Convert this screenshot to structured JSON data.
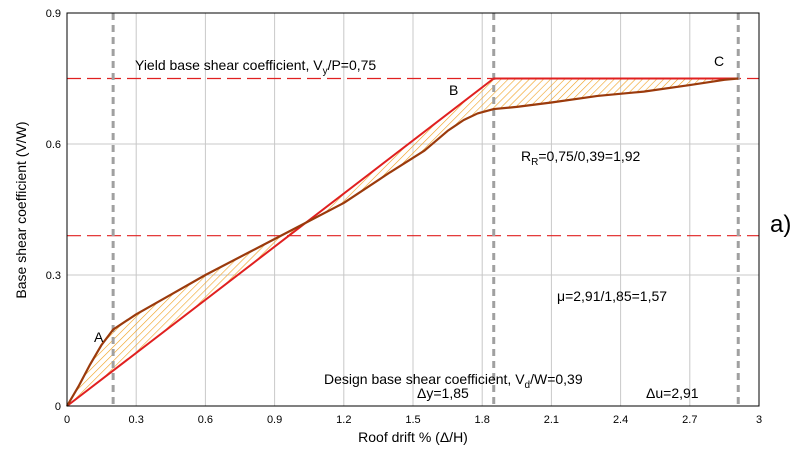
{
  "chart_data": {
    "type": "line",
    "xlabel": "Roof drift % (Δ/H)",
    "ylabel": "Base shear coefficient (V/W)",
    "xlim": [
      0,
      3
    ],
    "ylim": [
      0,
      0.9
    ],
    "x_ticks": [
      "0",
      "0.3",
      "0.6",
      "0.9",
      "1.2",
      "1.5",
      "1.8",
      "2.1",
      "2.4",
      "2.7",
      "3"
    ],
    "y_ticks": [
      "0",
      "0.3",
      "0.6",
      "0.9"
    ],
    "grid": true,
    "panel_label": "a)",
    "series": [
      {
        "kind": "capacity-curve",
        "color": "#9b3a0c",
        "x": [
          0,
          0.05,
          0.1,
          0.15,
          0.2,
          0.3,
          0.45,
          0.6,
          0.8,
          1.0,
          1.2,
          1.4,
          1.55,
          1.65,
          1.72,
          1.78,
          1.85,
          1.95,
          2.1,
          2.3,
          2.5,
          2.7,
          2.85,
          2.91
        ],
        "y": [
          0,
          0.045,
          0.095,
          0.14,
          0.175,
          0.21,
          0.255,
          0.3,
          0.355,
          0.41,
          0.465,
          0.535,
          0.585,
          0.63,
          0.655,
          0.67,
          0.68,
          0.685,
          0.695,
          0.71,
          0.72,
          0.735,
          0.747,
          0.75
        ]
      },
      {
        "kind": "bilinear-idealization",
        "color": "#e02020",
        "x": [
          0,
          1.85,
          2.91
        ],
        "y": [
          0,
          0.75,
          0.75
        ]
      }
    ],
    "reference_lines": {
      "horizontal": [
        {
          "y": 0.75,
          "color": "#e02020",
          "label_main": "Yield base shear coefficient, V",
          "label_sub": "y",
          "label_tail": "/P=0,75"
        },
        {
          "y": 0.39,
          "color": "#e02020",
          "label_main": "Design base shear coefficient, V",
          "label_sub": "d",
          "label_tail": "/W=0,39"
        }
      ],
      "vertical": [
        {
          "x": 0.2,
          "color": "#a0a0a0"
        },
        {
          "x": 1.85,
          "color": "#a0a0a0",
          "label": "Δy=1,85"
        },
        {
          "x": 2.91,
          "color": "#a0a0a0",
          "label": "Δu=2,91"
        }
      ]
    },
    "points": [
      {
        "label": "A",
        "x": 0.2,
        "y": 0.175
      },
      {
        "label": "B",
        "x": 1.85,
        "y": 0.75
      },
      {
        "label": "C",
        "x": 2.91,
        "y": 0.75
      }
    ],
    "annotations": {
      "rr_main": "R",
      "rr_sub": "R",
      "rr_tail": "=0,75/0,39=1,92",
      "mu": "μ=2,91/1,85=1,57"
    },
    "hatch_color": "#f0a020"
  }
}
